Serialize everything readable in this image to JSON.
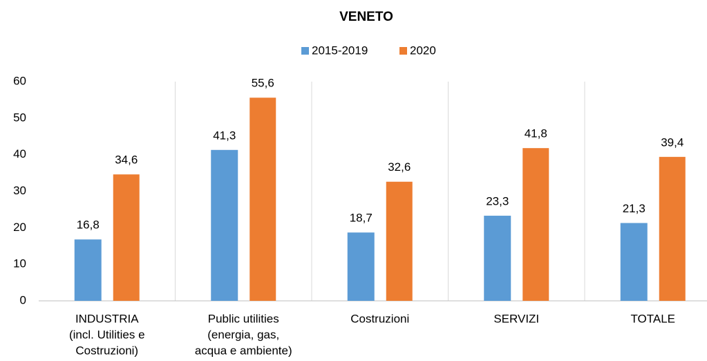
{
  "chart_data": {
    "type": "bar",
    "title": "VENETO",
    "categories": [
      [
        "INDUSTRIA",
        "(incl. Utilities e",
        "Costruzioni)"
      ],
      [
        "Public utilities",
        "(energia, gas,",
        "acqua e ambiente)"
      ],
      [
        "Costruzioni"
      ],
      [
        "SERVIZI"
      ],
      [
        "TOTALE"
      ]
    ],
    "series": [
      {
        "name": "2015-2019",
        "color": "#5b9bd5",
        "values": [
          16.8,
          41.3,
          18.7,
          23.3,
          21.3
        ],
        "value_labels": [
          "16,8",
          "41,3",
          "18,7",
          "23,3",
          "21,3"
        ]
      },
      {
        "name": "2020",
        "color": "#ed7d31",
        "values": [
          34.6,
          55.6,
          32.6,
          41.8,
          39.4
        ],
        "value_labels": [
          "34,6",
          "55,6",
          "32,6",
          "41,8",
          "39,4"
        ]
      }
    ],
    "ylim": [
      0,
      60
    ],
    "yticks": [
      0,
      10,
      20,
      30,
      40,
      50,
      60
    ],
    "legend": "top"
  }
}
